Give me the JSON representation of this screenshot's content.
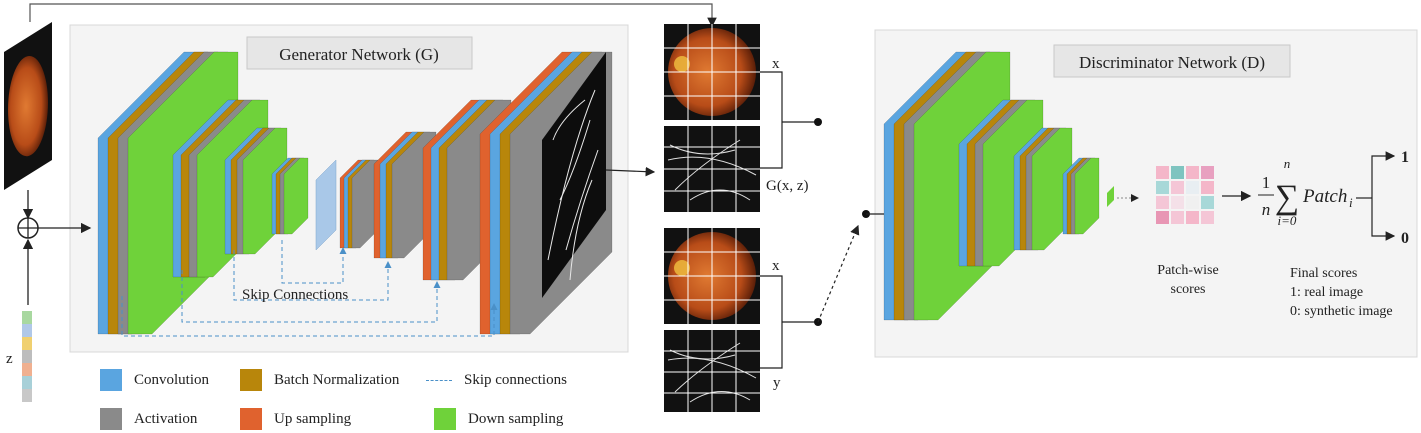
{
  "generator": {
    "title": "Generator Network (G)"
  },
  "discriminator": {
    "title": "Discriminator Network (D)"
  },
  "inputs": {
    "x": "x",
    "z": "z"
  },
  "skip_label": "Skip Connections",
  "pair_top": {
    "x_label": "x",
    "g_label": "G(x, z)"
  },
  "pair_bottom": {
    "x_label": "x",
    "y_label": "y"
  },
  "patch": {
    "label_line1": "Patch-wise",
    "label_line2": "scores"
  },
  "formula": {
    "numerator": "1",
    "denominator": "n",
    "upper": "n",
    "lower": "i=0",
    "term": "Patch",
    "subscript": "i"
  },
  "outputs": {
    "one": "1",
    "zero": "0"
  },
  "final_scores": {
    "title": "Final scores",
    "line1": "1: real image",
    "line2": "0: synthetic image"
  },
  "legend": {
    "convolution": "Convolution",
    "batch_norm": "Batch Normalization",
    "skip": "Skip connections",
    "activation": "Activation",
    "up_sampling": "Up sampling",
    "down_sampling": "Down sampling"
  },
  "colors": {
    "convolution": "#5aa5e0",
    "batch_norm": "#b8860b",
    "activation": "#8a8a8a",
    "up_sampling": "#e0622e",
    "down_sampling": "#6fd23a",
    "one_text": "#5a9e2f",
    "zero_text": "#d63a3a"
  }
}
